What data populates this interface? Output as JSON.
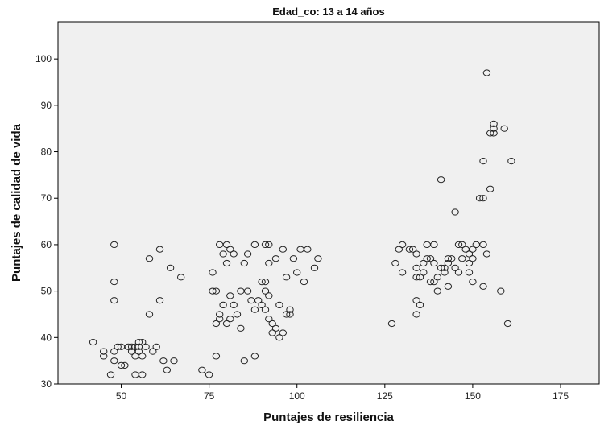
{
  "chart_data": {
    "type": "scatter",
    "title": "Edad_co: 13 a 14 años",
    "xlabel": "Puntajes de resiliencia",
    "ylabel": "Puntajes de calidad de vida",
    "xlim": [
      32,
      186
    ],
    "ylim": [
      30,
      108
    ],
    "xticks": [
      50,
      75,
      100,
      125,
      150,
      175
    ],
    "yticks": [
      30,
      40,
      50,
      60,
      70,
      80,
      90,
      100
    ],
    "grid": false,
    "colors": {
      "plot_bg": "#f0f0f0",
      "marker": "#222222",
      "axis": "#000000"
    },
    "points": [
      [
        42,
        39
      ],
      [
        45,
        37
      ],
      [
        45,
        36
      ],
      [
        48,
        60
      ],
      [
        48,
        52
      ],
      [
        48,
        48
      ],
      [
        48,
        37
      ],
      [
        48,
        35
      ],
      [
        47,
        32
      ],
      [
        49,
        38
      ],
      [
        50,
        38
      ],
      [
        50,
        34
      ],
      [
        51,
        34
      ],
      [
        52,
        38
      ],
      [
        53,
        38
      ],
      [
        53,
        37
      ],
      [
        54,
        38
      ],
      [
        54,
        36
      ],
      [
        54,
        32
      ],
      [
        55,
        39
      ],
      [
        55,
        38
      ],
      [
        55,
        37
      ],
      [
        56,
        39
      ],
      [
        56,
        36
      ],
      [
        56,
        32
      ],
      [
        57,
        38
      ],
      [
        58,
        57
      ],
      [
        58,
        45
      ],
      [
        59,
        37
      ],
      [
        60,
        38
      ],
      [
        61,
        59
      ],
      [
        61,
        48
      ],
      [
        62,
        35
      ],
      [
        63,
        33
      ],
      [
        64,
        55
      ],
      [
        65,
        35
      ],
      [
        67,
        53
      ],
      [
        73,
        33
      ],
      [
        75,
        32
      ],
      [
        76,
        54
      ],
      [
        76,
        50
      ],
      [
        77,
        50
      ],
      [
        77,
        43
      ],
      [
        77,
        36
      ],
      [
        78,
        60
      ],
      [
        78,
        45
      ],
      [
        78,
        44
      ],
      [
        79,
        58
      ],
      [
        79,
        47
      ],
      [
        80,
        43
      ],
      [
        80,
        60
      ],
      [
        80,
        56
      ],
      [
        81,
        59
      ],
      [
        81,
        49
      ],
      [
        81,
        44
      ],
      [
        82,
        58
      ],
      [
        82,
        47
      ],
      [
        83,
        45
      ],
      [
        84,
        50
      ],
      [
        84,
        42
      ],
      [
        85,
        56
      ],
      [
        85,
        35
      ],
      [
        86,
        50
      ],
      [
        86,
        58
      ],
      [
        87,
        48
      ],
      [
        88,
        60
      ],
      [
        88,
        46
      ],
      [
        88,
        36
      ],
      [
        89,
        48
      ],
      [
        90,
        52
      ],
      [
        90,
        47
      ],
      [
        91,
        60
      ],
      [
        91,
        52
      ],
      [
        91,
        50
      ],
      [
        91,
        46
      ],
      [
        92,
        60
      ],
      [
        92,
        56
      ],
      [
        92,
        49
      ],
      [
        92,
        44
      ],
      [
        93,
        43
      ],
      [
        93,
        41
      ],
      [
        94,
        57
      ],
      [
        94,
        42
      ],
      [
        95,
        40
      ],
      [
        95,
        47
      ],
      [
        96,
        41
      ],
      [
        96,
        59
      ],
      [
        97,
        53
      ],
      [
        97,
        45
      ],
      [
        98,
        46
      ],
      [
        98,
        45
      ],
      [
        99,
        57
      ],
      [
        100,
        54
      ],
      [
        101,
        59
      ],
      [
        102,
        52
      ],
      [
        103,
        59
      ],
      [
        105,
        55
      ],
      [
        106,
        57
      ],
      [
        127,
        43
      ],
      [
        128,
        56
      ],
      [
        129,
        59
      ],
      [
        130,
        60
      ],
      [
        130,
        54
      ],
      [
        132,
        59
      ],
      [
        133,
        59
      ],
      [
        134,
        58
      ],
      [
        134,
        55
      ],
      [
        134,
        53
      ],
      [
        134,
        48
      ],
      [
        134,
        45
      ],
      [
        135,
        53
      ],
      [
        135,
        47
      ],
      [
        136,
        56
      ],
      [
        136,
        54
      ],
      [
        137,
        60
      ],
      [
        137,
        57
      ],
      [
        138,
        57
      ],
      [
        138,
        52
      ],
      [
        139,
        60
      ],
      [
        139,
        56
      ],
      [
        139,
        52
      ],
      [
        140,
        53
      ],
      [
        140,
        50
      ],
      [
        141,
        74
      ],
      [
        141,
        55
      ],
      [
        142,
        55
      ],
      [
        142,
        54
      ],
      [
        143,
        57
      ],
      [
        143,
        56
      ],
      [
        143,
        51
      ],
      [
        144,
        57
      ],
      [
        145,
        67
      ],
      [
        145,
        55
      ],
      [
        146,
        54
      ],
      [
        146,
        60
      ],
      [
        147,
        57
      ],
      [
        147,
        60
      ],
      [
        148,
        59
      ],
      [
        149,
        58
      ],
      [
        149,
        56
      ],
      [
        149,
        54
      ],
      [
        150,
        57
      ],
      [
        150,
        52
      ],
      [
        150,
        59
      ],
      [
        151,
        60
      ],
      [
        152,
        70
      ],
      [
        153,
        70
      ],
      [
        153,
        78
      ],
      [
        153,
        60
      ],
      [
        153,
        51
      ],
      [
        154,
        97
      ],
      [
        154,
        58
      ],
      [
        155,
        84
      ],
      [
        155,
        72
      ],
      [
        156,
        86
      ],
      [
        156,
        85
      ],
      [
        156,
        84
      ],
      [
        158,
        50
      ],
      [
        159,
        85
      ],
      [
        160,
        43
      ],
      [
        161,
        78
      ]
    ]
  }
}
